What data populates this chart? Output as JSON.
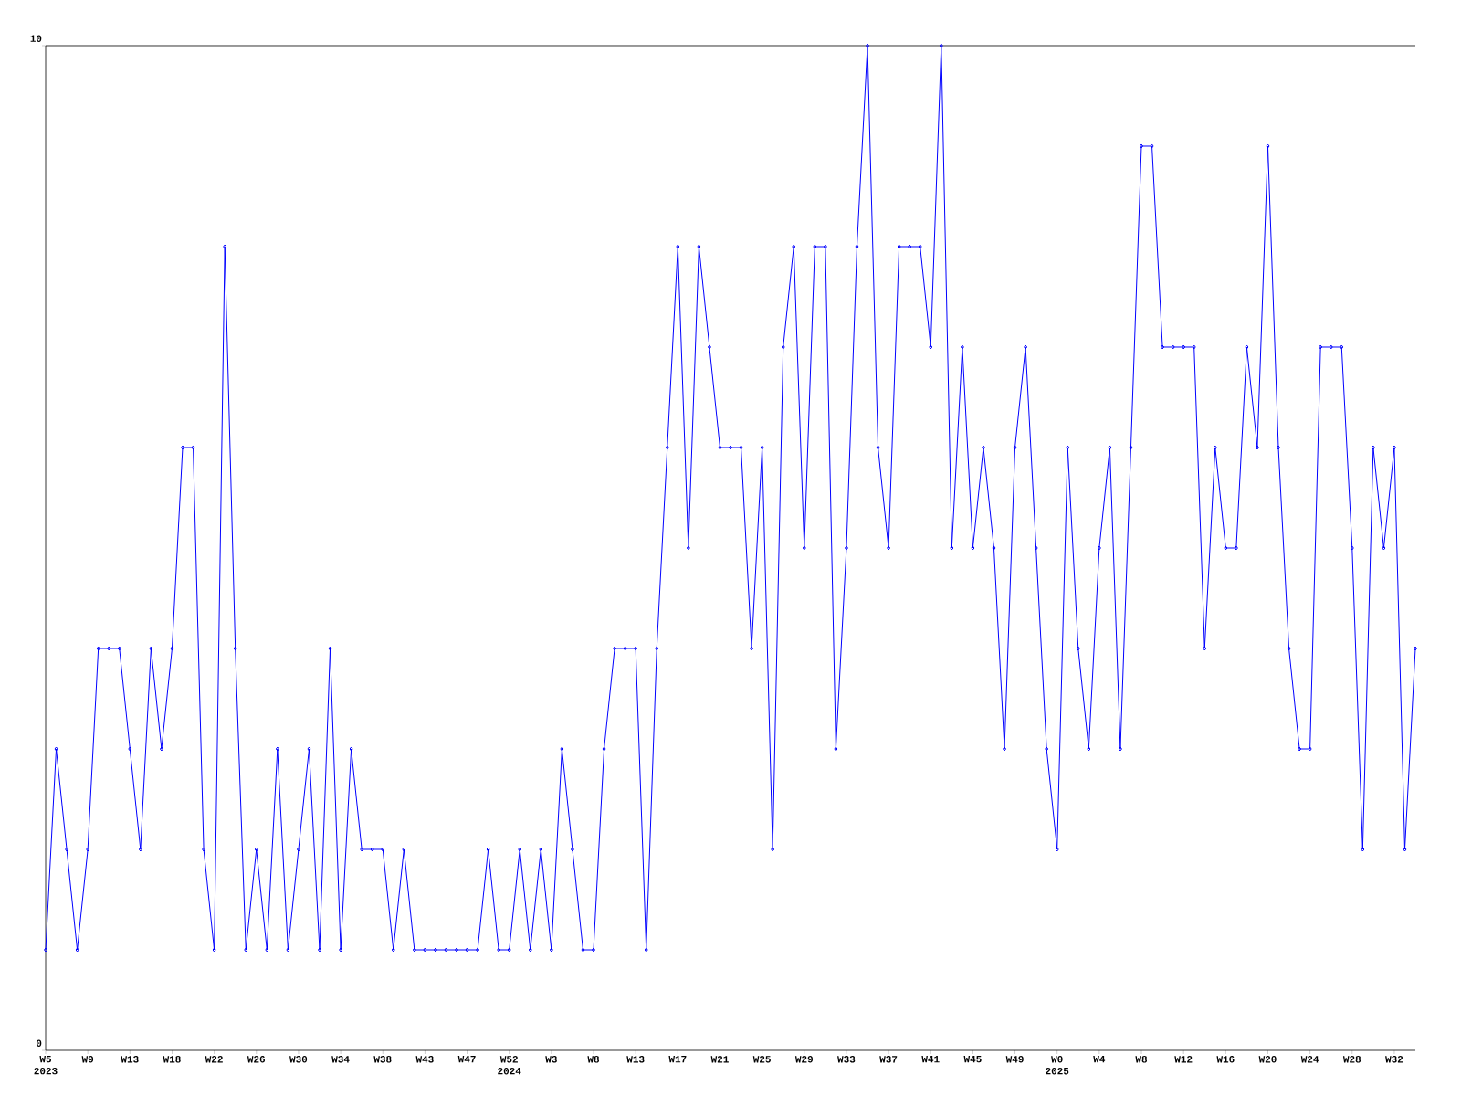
{
  "chart_data": {
    "type": "line",
    "color": "#0000ff",
    "marker": "diamond",
    "line_style": "solid",
    "categories": [
      "W5 2023",
      null,
      null,
      null,
      "W9",
      null,
      null,
      null,
      "W13",
      null,
      null,
      null,
      "W18",
      null,
      null,
      null,
      "W22",
      null,
      null,
      null,
      "W26",
      null,
      null,
      null,
      "W30",
      null,
      null,
      null,
      "W34",
      null,
      null,
      null,
      "W38",
      null,
      null,
      null,
      "W43",
      null,
      null,
      null,
      "W47",
      null,
      null,
      null,
      "W52 2024",
      null,
      null,
      null,
      "W3",
      null,
      null,
      null,
      "W8",
      null,
      null,
      null,
      "W13",
      null,
      null,
      null,
      "W17",
      null,
      null,
      null,
      "W21",
      null,
      null,
      null,
      "W25",
      null,
      null,
      null,
      "W29",
      null,
      null,
      null,
      "W33",
      null,
      null,
      null,
      "W37",
      null,
      null,
      null,
      "W41",
      null,
      null,
      null,
      "W45",
      null,
      null,
      null,
      "W49",
      null,
      null,
      null,
      "W0 2025",
      null,
      null,
      null,
      "W4",
      null,
      null,
      null,
      "W8",
      null,
      null,
      null,
      "W12",
      null,
      null,
      null,
      "W16",
      null,
      null,
      null,
      "W20",
      null,
      null,
      null,
      "W24",
      null,
      null,
      null,
      "W28",
      null,
      null,
      null,
      "W32",
      null,
      null
    ],
    "values": [
      1,
      3,
      2,
      1,
      2,
      4,
      4,
      4,
      3,
      2,
      4,
      3,
      4,
      6,
      6,
      2,
      1,
      8,
      4,
      1,
      2,
      1,
      3,
      1,
      2,
      3,
      1,
      4,
      1,
      3,
      2,
      2,
      2,
      1,
      2,
      1,
      1,
      1,
      1,
      1,
      1,
      1,
      2,
      1,
      1,
      2,
      1,
      2,
      1,
      3,
      2,
      1,
      1,
      3,
      4,
      4,
      4,
      1,
      4,
      6,
      8,
      5,
      8,
      7,
      6,
      6,
      6,
      4,
      6,
      2,
      7,
      8,
      5,
      8,
      8,
      3,
      5,
      8,
      10,
      6,
      5,
      8,
      8,
      8,
      7,
      10,
      5,
      7,
      5,
      6,
      5,
      3,
      6,
      7,
      5,
      3,
      2,
      6,
      4,
      3,
      5,
      6,
      3,
      6,
      9,
      9,
      7,
      7,
      7,
      7,
      4,
      6,
      5,
      5,
      7,
      6,
      9,
      6,
      4,
      3,
      3,
      7,
      7,
      7,
      5,
      2,
      6,
      5,
      6,
      2,
      4
    ],
    "ylim": [
      0,
      10
    ],
    "yticks": [
      0,
      10
    ],
    "grid": false
  }
}
